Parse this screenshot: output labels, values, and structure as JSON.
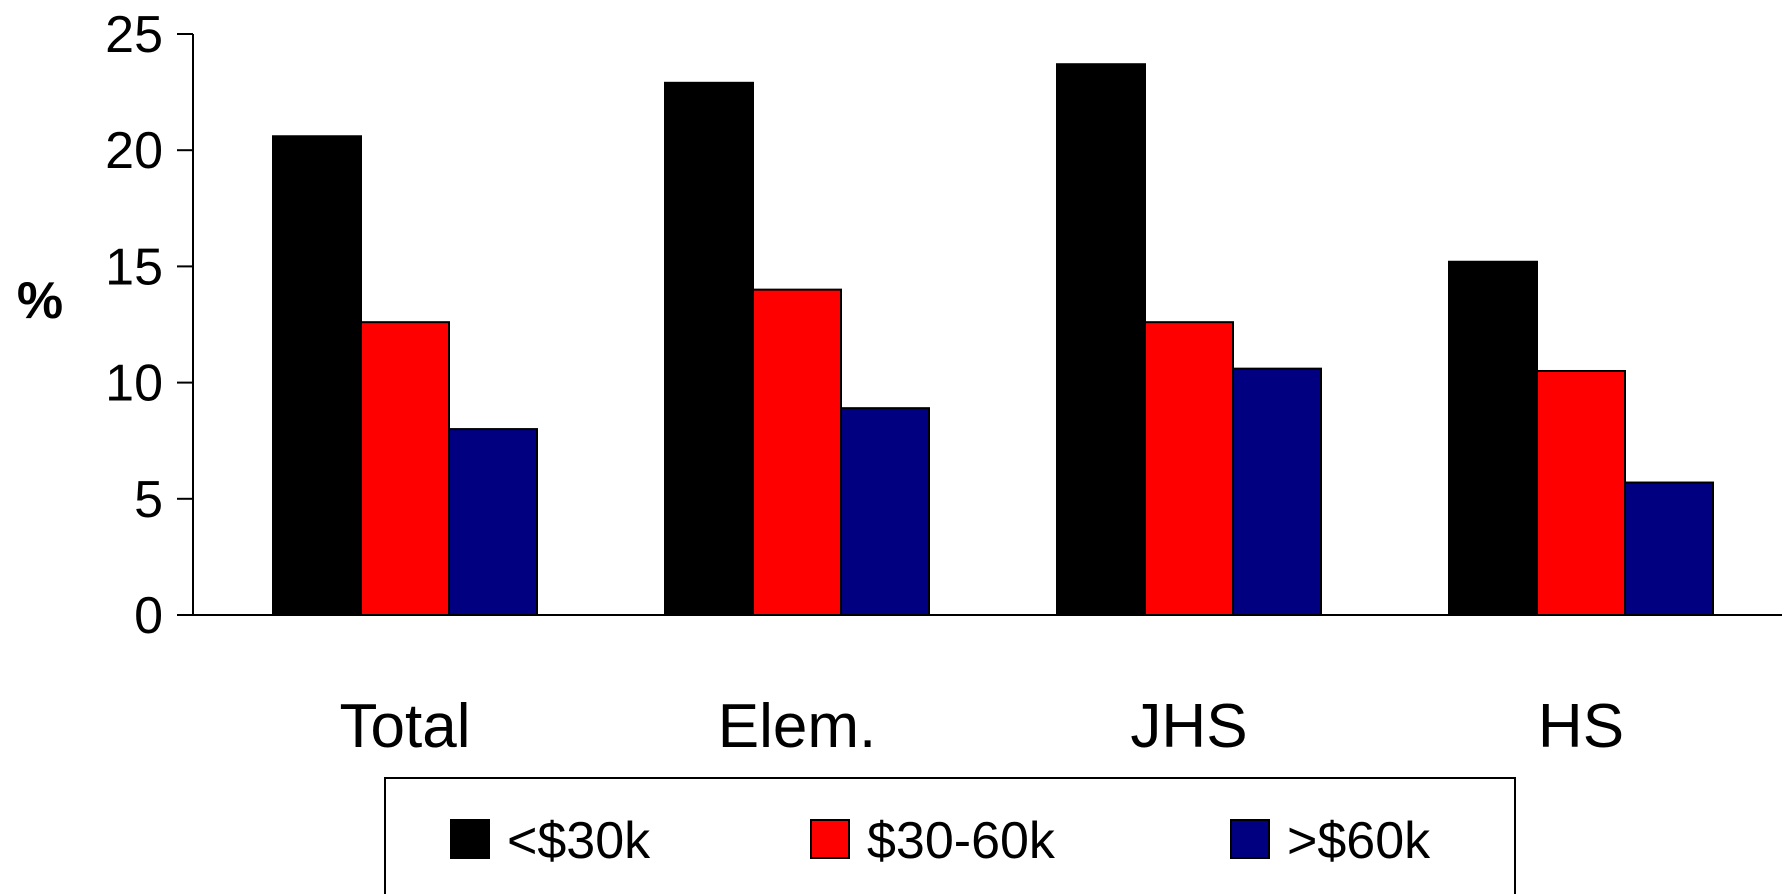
{
  "chart_data": {
    "type": "bar",
    "title": "",
    "xlabel": "",
    "ylabel": "%",
    "ylim": [
      0,
      25
    ],
    "yticks": [
      0,
      5,
      10,
      15,
      20,
      25
    ],
    "categories": [
      "Total",
      "Elem.",
      "JHS",
      "HS"
    ],
    "series": [
      {
        "name": "<$30k",
        "color": "#000000",
        "values": [
          20.6,
          22.9,
          23.7,
          15.2
        ]
      },
      {
        "name": "$30-60k",
        "color": "#ff0000",
        "values": [
          12.6,
          14.0,
          12.6,
          10.5
        ]
      },
      {
        "name": ">$60k",
        "color": "#000080",
        "values": [
          8.0,
          8.9,
          10.6,
          5.7
        ]
      }
    ],
    "grid": false,
    "legend_position": "bottom"
  }
}
